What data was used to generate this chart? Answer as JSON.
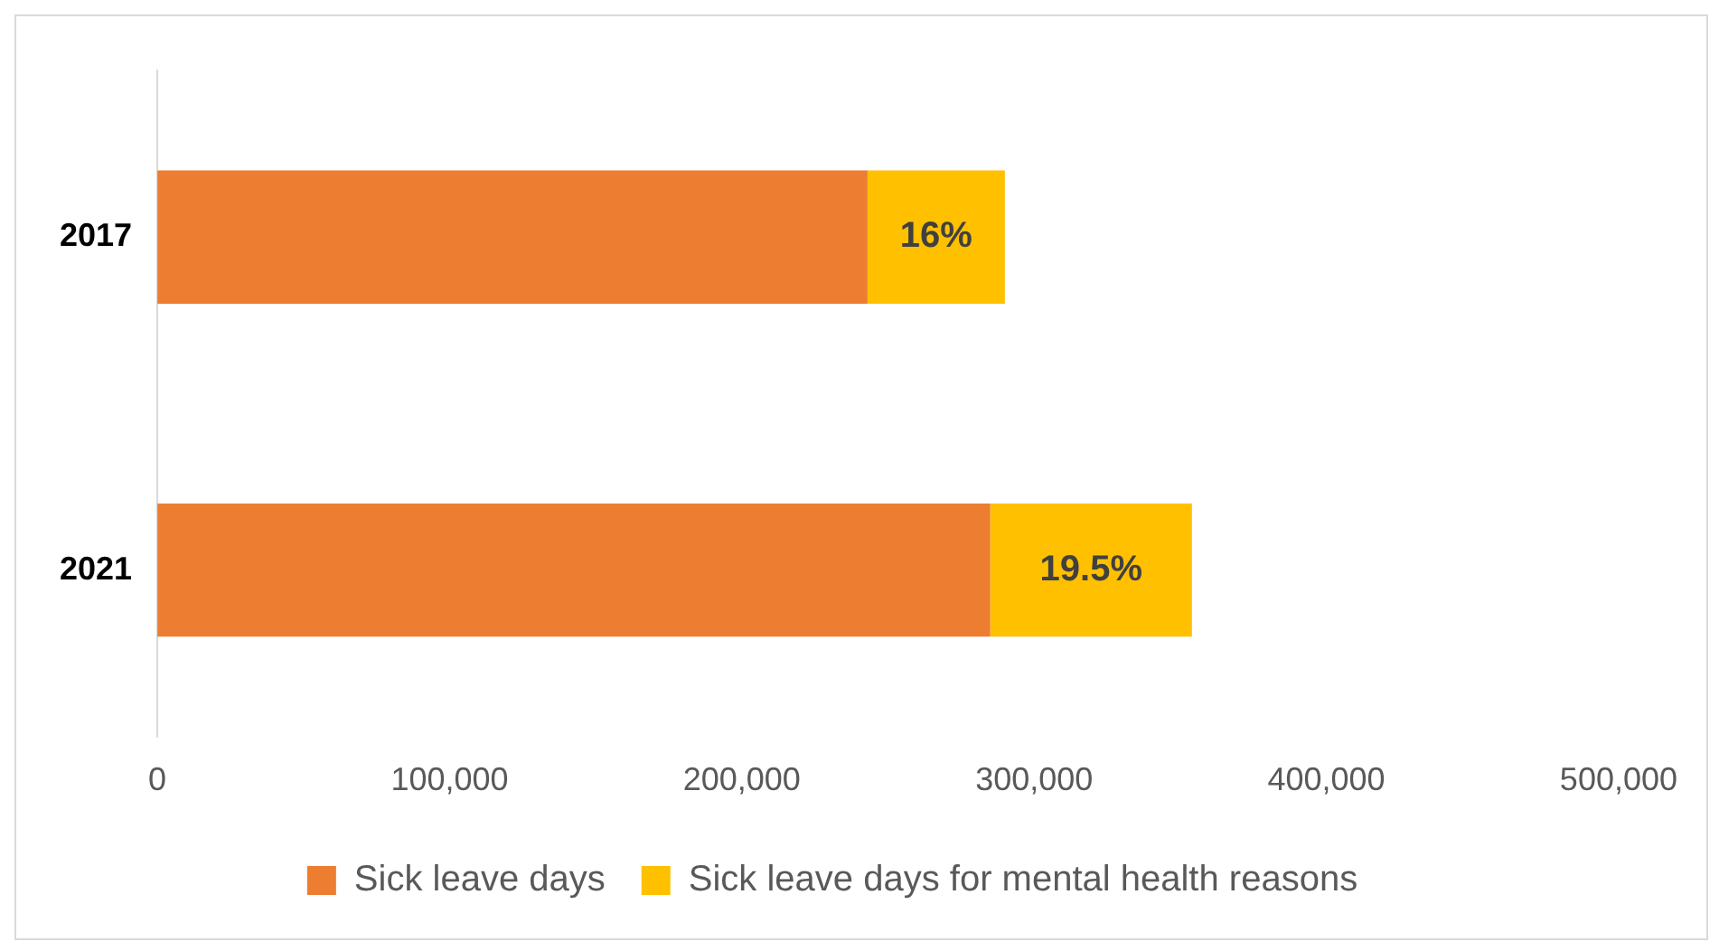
{
  "chart_data": {
    "type": "bar",
    "orientation": "horizontal",
    "stacked": true,
    "categories": [
      "2017",
      "2021"
    ],
    "series": [
      {
        "name": "Sick leave days",
        "color": "#ed7d31",
        "values": [
          243000,
          285000
        ]
      },
      {
        "name": "Sick leave days for mental health reasons",
        "color": "#ffc000",
        "values": [
          47000,
          69000
        ]
      }
    ],
    "annotations": [
      "16%",
      "19.5%"
    ],
    "xlim": [
      0,
      500000
    ],
    "xticks": [
      0,
      {
        "value": 100000,
        "label": "100,000"
      },
      {
        "value": 200000,
        "label": "200,000"
      },
      {
        "value": 300000,
        "label": "300,000"
      },
      {
        "value": 400000,
        "label": "400,000"
      },
      {
        "value": 500000,
        "label": "500,000"
      }
    ],
    "grid": false,
    "legend": "bottom"
  }
}
